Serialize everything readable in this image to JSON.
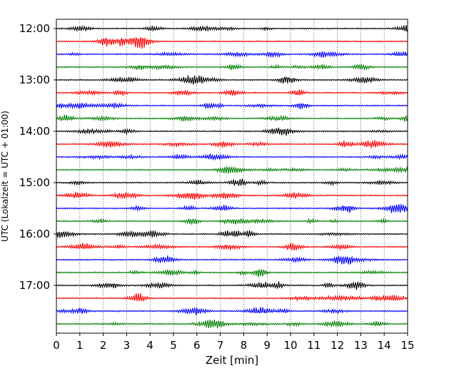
{
  "chart_data": {
    "type": "line",
    "title": "",
    "xlabel": "Zeit  [min]",
    "ylabel": "UTC (Lokalzeit = UTC + 01:00)",
    "xlim": [
      0,
      15
    ],
    "x_ticks": [
      0,
      1,
      2,
      3,
      4,
      5,
      6,
      7,
      8,
      9,
      10,
      11,
      12,
      13,
      14,
      15
    ],
    "y_tick_labels": [
      "12:00",
      "13:00",
      "14:00",
      "15:00",
      "16:00",
      "17:00"
    ],
    "grid": "vertical dotted",
    "trace_start_times": [
      "12:00",
      "12:15",
      "12:30",
      "12:45",
      "13:00",
      "13:15",
      "13:30",
      "13:45",
      "14:00",
      "14:15",
      "14:30",
      "14:45",
      "15:00",
      "15:15",
      "15:30",
      "15:45",
      "16:00",
      "16:15",
      "16:30",
      "16:45",
      "17:00",
      "17:15",
      "17:30",
      "17:45"
    ],
    "trace_color_cycle": [
      "#000000",
      "#ff0000",
      "#0000ff",
      "#008000"
    ]
  }
}
